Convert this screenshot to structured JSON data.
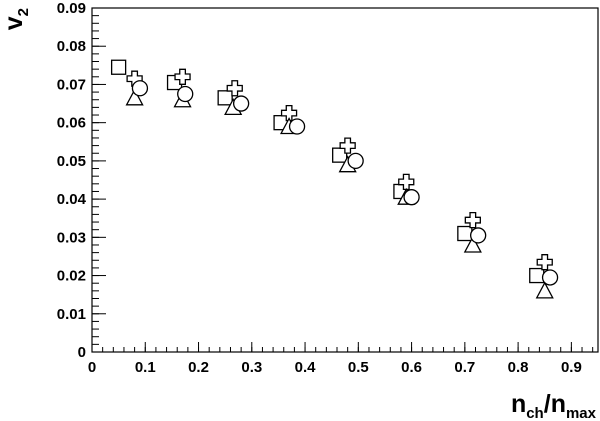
{
  "chart_data": {
    "type": "scatter",
    "title": "",
    "xlabel": {
      "main": "n",
      "sub": "ch",
      "sep": "/",
      "main2": "n",
      "sub2": "max"
    },
    "ylabel": {
      "main": "v",
      "sub": "2"
    },
    "xlim": [
      0,
      0.95
    ],
    "ylim": [
      0,
      0.09
    ],
    "xticks": [
      0,
      0.1,
      0.2,
      0.3,
      0.4,
      0.5,
      0.6,
      0.7,
      0.8,
      0.9
    ],
    "xtick_labels": [
      "0",
      "0.1",
      "0.2",
      "0.3",
      "0.4",
      "0.5",
      "0.6",
      "0.7",
      "0.8",
      "0.9"
    ],
    "yticks": [
      0,
      0.01,
      0.02,
      0.03,
      0.04,
      0.05,
      0.06,
      0.07,
      0.08,
      0.09
    ],
    "ytick_labels": [
      "0",
      "0.01",
      "0.02",
      "0.03",
      "0.04",
      "0.05",
      "0.06",
      "0.07",
      "0.08",
      "0.09"
    ],
    "grid": false,
    "legend": "none",
    "series": [
      {
        "marker": "square",
        "x": [
          0.05,
          0.155,
          0.25,
          0.355,
          0.465,
          0.58,
          0.7,
          0.835
        ],
        "y": [
          0.0745,
          0.0705,
          0.0665,
          0.06,
          0.0515,
          0.042,
          0.031,
          0.02
        ]
      },
      {
        "marker": "cross",
        "x": [
          0.08,
          0.17,
          0.268,
          0.37,
          0.48,
          0.59,
          0.715,
          0.85
        ],
        "y": [
          0.0715,
          0.072,
          0.069,
          0.0625,
          0.054,
          0.0445,
          0.0345,
          0.0235
        ]
      },
      {
        "marker": "triangle",
        "x": [
          0.08,
          0.17,
          0.265,
          0.37,
          0.48,
          0.59,
          0.715,
          0.85
        ],
        "y": [
          0.0665,
          0.066,
          0.064,
          0.059,
          0.049,
          0.0405,
          0.028,
          0.016
        ]
      },
      {
        "marker": "circle",
        "x": [
          0.09,
          0.175,
          0.28,
          0.385,
          0.495,
          0.6,
          0.725,
          0.86
        ],
        "y": [
          0.069,
          0.0675,
          0.065,
          0.059,
          0.05,
          0.0405,
          0.0305,
          0.0195
        ]
      }
    ]
  }
}
